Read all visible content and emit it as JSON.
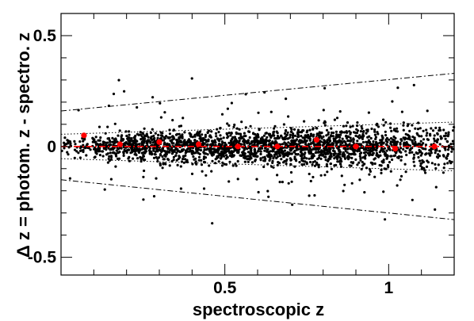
{
  "chart_data": {
    "type": "scatter",
    "title": "",
    "xlabel": "spectroscopic z",
    "ylabel": "Δ z = photom. z - spectro. z",
    "xlim": [
      0.0,
      1.2
    ],
    "ylim": [
      -0.58,
      0.6
    ],
    "x_ticks": [
      0.5,
      1.0
    ],
    "x_tick_labels": [
      "0.5",
      "1"
    ],
    "y_ticks": [
      -0.5,
      0.0,
      0.5
    ],
    "y_tick_labels": [
      "-0.5",
      "0",
      "0.5"
    ],
    "grid": false,
    "legend": "none",
    "colors": {
      "points": "#000000",
      "bin_means": "#ff0000",
      "zero_line": "#ff0000",
      "bands": "#000000"
    },
    "bin_means": {
      "x": [
        0.07,
        0.18,
        0.3,
        0.42,
        0.54,
        0.66,
        0.78,
        0.9,
        1.02,
        1.14
      ],
      "y": [
        0.05,
        0.01,
        0.02,
        0.01,
        0.0,
        0.0,
        0.03,
        0.0,
        -0.01,
        0.0
      ]
    },
    "bands": [
      {
        "style": "dash-dot",
        "y_at_xmin": 0.16,
        "y_at_xmax": 0.33
      },
      {
        "style": "dash-dot",
        "y_at_xmin": -0.15,
        "y_at_xmax": -0.33
      },
      {
        "style": "dotted",
        "y_at_xmin": 0.055,
        "y_at_xmax": 0.11
      },
      {
        "style": "dotted",
        "y_at_xmin": -0.055,
        "y_at_xmax": -0.11
      }
    ],
    "zero_line": {
      "y": 0,
      "style": "dash-dot"
    },
    "scatter_density": [
      {
        "x_range": [
          0.0,
          0.1
        ],
        "count": 60,
        "sigma": 0.035
      },
      {
        "x_range": [
          0.1,
          0.2
        ],
        "count": 150,
        "sigma": 0.04
      },
      {
        "x_range": [
          0.2,
          0.3
        ],
        "count": 220,
        "sigma": 0.045
      },
      {
        "x_range": [
          0.3,
          0.4
        ],
        "count": 220,
        "sigma": 0.05
      },
      {
        "x_range": [
          0.4,
          0.5
        ],
        "count": 240,
        "sigma": 0.05
      },
      {
        "x_range": [
          0.5,
          0.6
        ],
        "count": 240,
        "sigma": 0.055
      },
      {
        "x_range": [
          0.6,
          0.7
        ],
        "count": 260,
        "sigma": 0.055
      },
      {
        "x_range": [
          0.7,
          0.8
        ],
        "count": 280,
        "sigma": 0.06
      },
      {
        "x_range": [
          0.8,
          0.9
        ],
        "count": 280,
        "sigma": 0.06
      },
      {
        "x_range": [
          0.9,
          1.0
        ],
        "count": 220,
        "sigma": 0.065
      },
      {
        "x_range": [
          1.0,
          1.1
        ],
        "count": 170,
        "sigma": 0.07
      },
      {
        "x_range": [
          1.1,
          1.2
        ],
        "count": 120,
        "sigma": 0.075
      }
    ],
    "outlier_fraction": 0.08
  }
}
